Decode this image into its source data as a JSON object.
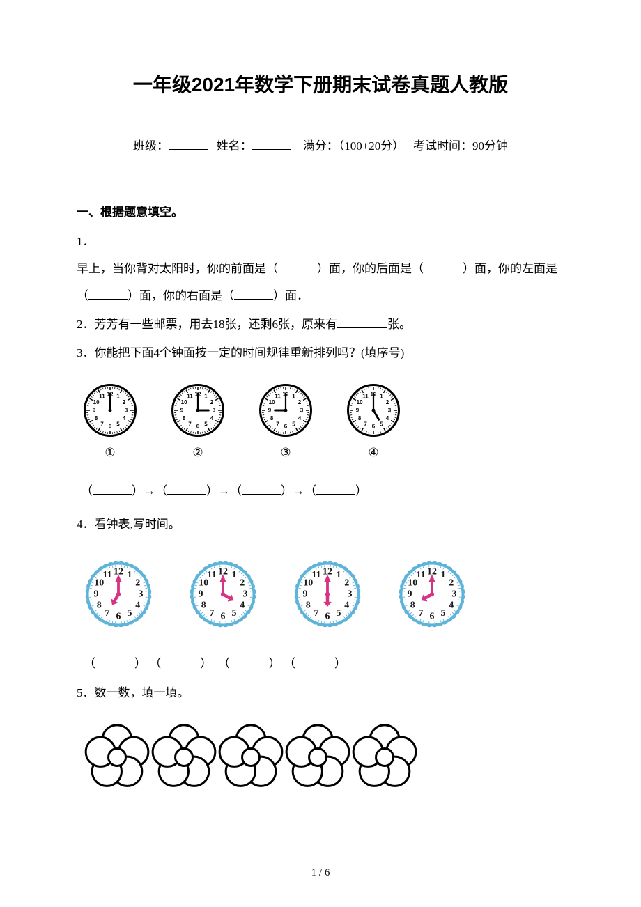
{
  "title": "一年级2021年数学下册期末试卷真题人教版",
  "info": {
    "class_label": "班级：",
    "name_label": "姓名：",
    "score_label": "满分：（100+20分）",
    "time_label": "考试时间：90分钟"
  },
  "section1": {
    "heading": "一、根据题意填空。",
    "q1": {
      "num": "1．",
      "text_a": "早上，当你背对太阳时，你的前面是（",
      "text_b": "）面，你的后面是（",
      "text_c": "）面，你的左面是（",
      "text_d": "）面，你的右面是（",
      "text_e": "）面．"
    },
    "q2": {
      "num": "2．",
      "text_a": "芳芳有一些邮票，用去18张，还剩6张，原来有",
      "text_b": "张。"
    },
    "q3": {
      "num": "3．",
      "text": "你能把下面4个钟面按一定的时间规律重新排列吗？(填序号)"
    },
    "clocks_q3": [
      {
        "label": "①",
        "hour": 12,
        "minute": 0,
        "style": "black"
      },
      {
        "label": "②",
        "hour": 3,
        "minute": 0,
        "style": "black"
      },
      {
        "label": "③",
        "hour": 9,
        "minute": 0,
        "style": "black"
      },
      {
        "label": "④",
        "hour": 5,
        "minute": 0,
        "style": "black"
      }
    ],
    "sequence": {
      "arrow": "→"
    },
    "q4": {
      "num": "4．",
      "text": "看钟表,写时间。"
    },
    "clocks_q4": [
      {
        "hour": 7,
        "minute": 0
      },
      {
        "hour": 4,
        "minute": 0
      },
      {
        "hour": 6,
        "minute": 0
      },
      {
        "hour": 8,
        "minute": 0
      }
    ],
    "q5": {
      "num": "5．",
      "text": "数一数，填一填。"
    }
  },
  "clock_style_black": {
    "size": 76,
    "face_fill": "#ffffff",
    "face_stroke": "#000000",
    "face_stroke_width": 3,
    "tick_color": "#000000",
    "num_color": "#000000",
    "num_fontsize": 8,
    "hour_hand_color": "#000000",
    "minute_hand_color": "#000000",
    "center_color": "#000000"
  },
  "clock_style_blue": {
    "size": 100,
    "face_fill": "#ffffff",
    "face_stroke": "#5eb3d9",
    "face_stroke_width": 3,
    "tick_color": "#5eb3d9",
    "big_num_color": "#1a1a1a",
    "big_num_fontsize": 14,
    "hour_hand_color": "#d63384",
    "minute_hand_color": "#d63384",
    "center_color": "#d63384"
  },
  "flower": {
    "count": 5,
    "size": 96,
    "fill": "#ffffff",
    "stroke": "#000000",
    "stroke_width": 3
  },
  "page_number": "1 / 6"
}
